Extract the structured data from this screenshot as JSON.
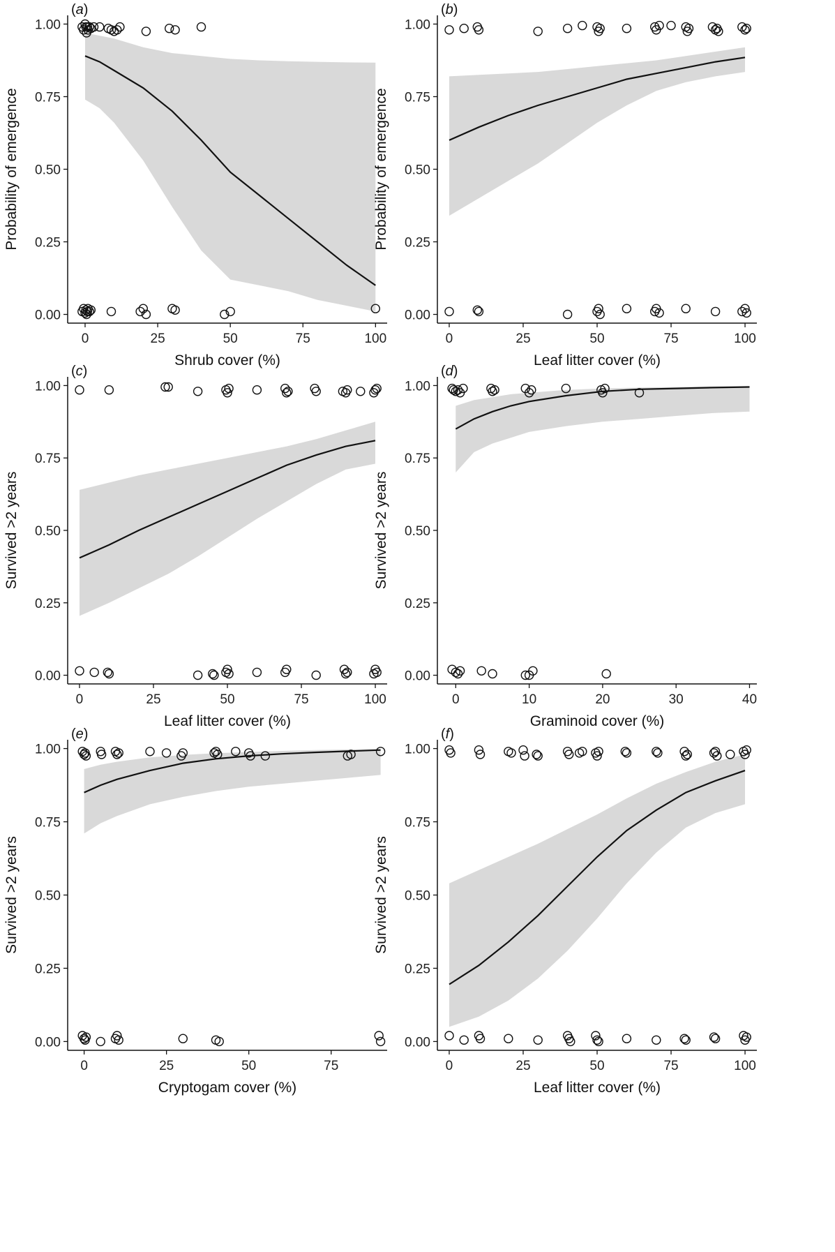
{
  "figure": {
    "background": "#ffffff",
    "ci_color": "#d9d9d9",
    "line_color": "#111111",
    "point_stroke": "#111111"
  },
  "chart_data": [
    {
      "type": "line",
      "panel": "(a)",
      "xlabel": "Shrub cover (%)",
      "ylabel": "Probability of emergence",
      "xlim": [
        -6,
        104
      ],
      "ylim": [
        -0.03,
        1.03
      ],
      "xticks": [
        0,
        25,
        50,
        75,
        100
      ],
      "yticks": [
        0.0,
        0.25,
        0.5,
        0.75,
        1.0
      ],
      "ytick_labels": [
        "0.00",
        "0.25",
        "0.50",
        "0.75",
        "1.00"
      ],
      "fit": {
        "x": [
          0,
          5,
          10,
          20,
          30,
          40,
          50,
          60,
          70,
          80,
          90,
          100
        ],
        "y": [
          0.89,
          0.87,
          0.84,
          0.78,
          0.7,
          0.6,
          0.49,
          0.41,
          0.33,
          0.25,
          0.17,
          0.1
        ]
      },
      "ci_lower": {
        "x": [
          0,
          5,
          10,
          20,
          30,
          40,
          50,
          60,
          70,
          80,
          90,
          100
        ],
        "y": [
          0.74,
          0.71,
          0.66,
          0.53,
          0.37,
          0.22,
          0.12,
          0.1,
          0.08,
          0.05,
          0.03,
          0.01
        ]
      },
      "ci_upper": {
        "x": [
          0,
          5,
          10,
          20,
          30,
          40,
          50,
          60,
          70,
          80,
          90,
          100
        ],
        "y": [
          0.97,
          0.96,
          0.95,
          0.92,
          0.9,
          0.89,
          0.88,
          0.875,
          0.872,
          0.87,
          0.868,
          0.867
        ]
      },
      "points": {
        "x": [
          -1,
          -0.5,
          0,
          0.3,
          0.5,
          0.8,
          1,
          1.5,
          2,
          3,
          5,
          8,
          9,
          10,
          11,
          12,
          21,
          29,
          31,
          40,
          -1,
          -0.5,
          0,
          0.3,
          0.5,
          0.8,
          1,
          1.5,
          2,
          9,
          19,
          20,
          21,
          30,
          31,
          48,
          50,
          100
        ],
        "y": [
          0.99,
          0.98,
          1.0,
          0.99,
          0.97,
          0.99,
          0.98,
          0.99,
          0.985,
          0.99,
          0.99,
          0.985,
          0.98,
          0.975,
          0.98,
          0.99,
          0.975,
          0.985,
          0.98,
          0.99,
          0.01,
          0.02,
          0.005,
          0.015,
          0.0,
          0.01,
          0.02,
          0.01,
          0.015,
          0.01,
          0.01,
          0.02,
          0.0,
          0.02,
          0.015,
          0.0,
          0.01,
          0.02
        ]
      }
    },
    {
      "type": "line",
      "panel": "(b)",
      "xlabel": "Leaf litter cover (%)",
      "ylabel": "Probability of emergence",
      "xlim": [
        -4,
        104
      ],
      "ylim": [
        -0.03,
        1.03
      ],
      "xticks": [
        0,
        25,
        50,
        75,
        100
      ],
      "yticks": [
        0.0,
        0.25,
        0.5,
        0.75,
        1.0
      ],
      "ytick_labels": [
        "0.00",
        "0.25",
        "0.50",
        "0.75",
        "1.00"
      ],
      "fit": {
        "x": [
          0,
          10,
          20,
          30,
          40,
          50,
          60,
          70,
          80,
          90,
          100
        ],
        "y": [
          0.6,
          0.645,
          0.685,
          0.72,
          0.75,
          0.78,
          0.81,
          0.83,
          0.85,
          0.87,
          0.885
        ]
      },
      "ci_lower": {
        "x": [
          0,
          10,
          20,
          30,
          40,
          50,
          60,
          70,
          80,
          90,
          100
        ],
        "y": [
          0.34,
          0.4,
          0.46,
          0.52,
          0.59,
          0.66,
          0.72,
          0.77,
          0.8,
          0.82,
          0.835
        ]
      },
      "ci_upper": {
        "x": [
          0,
          10,
          20,
          30,
          40,
          50,
          60,
          70,
          80,
          90,
          100
        ],
        "y": [
          0.82,
          0.825,
          0.83,
          0.835,
          0.845,
          0.855,
          0.865,
          0.875,
          0.89,
          0.905,
          0.92
        ]
      },
      "points": {
        "x": [
          0,
          5,
          9.5,
          10,
          30,
          40,
          45,
          50,
          50.5,
          51,
          60,
          69.5,
          70,
          71,
          75,
          80,
          80.5,
          81,
          89,
          90,
          90.5,
          91,
          99,
          100,
          100.5,
          0,
          9.5,
          10,
          40,
          50,
          50.5,
          51,
          60,
          69.5,
          70,
          71,
          80,
          90,
          99,
          100,
          100.5
        ],
        "y": [
          0.98,
          0.985,
          0.99,
          0.98,
          0.975,
          0.985,
          0.995,
          0.99,
          0.975,
          0.985,
          0.985,
          0.99,
          0.98,
          0.995,
          0.995,
          0.99,
          0.975,
          0.985,
          0.99,
          0.98,
          0.985,
          0.975,
          0.99,
          0.98,
          0.985,
          0.01,
          0.015,
          0.01,
          0.0,
          0.01,
          0.02,
          0.0,
          0.02,
          0.01,
          0.02,
          0.005,
          0.02,
          0.01,
          0.01,
          0.02,
          0.005
        ]
      }
    },
    {
      "type": "line",
      "panel": "(c)",
      "xlabel": "Leaf litter cover (%)",
      "ylabel": "Survived >2 years",
      "xlim": [
        -4,
        104
      ],
      "ylim": [
        -0.03,
        1.03
      ],
      "xticks": [
        0,
        25,
        50,
        75,
        100
      ],
      "yticks": [
        0.0,
        0.25,
        0.5,
        0.75,
        1.0
      ],
      "ytick_labels": [
        "0.00",
        "0.25",
        "0.50",
        "0.75",
        "1.00"
      ],
      "fit": {
        "x": [
          0,
          10,
          20,
          30,
          40,
          50,
          60,
          70,
          80,
          90,
          100
        ],
        "y": [
          0.405,
          0.45,
          0.5,
          0.545,
          0.59,
          0.635,
          0.68,
          0.725,
          0.76,
          0.79,
          0.81
        ]
      },
      "ci_lower": {
        "x": [
          0,
          10,
          20,
          30,
          40,
          50,
          60,
          70,
          80,
          90,
          100
        ],
        "y": [
          0.205,
          0.25,
          0.3,
          0.35,
          0.41,
          0.475,
          0.54,
          0.6,
          0.66,
          0.71,
          0.73
        ]
      },
      "ci_upper": {
        "x": [
          0,
          10,
          20,
          30,
          40,
          50,
          60,
          70,
          80,
          90,
          100
        ],
        "y": [
          0.64,
          0.665,
          0.69,
          0.71,
          0.73,
          0.75,
          0.77,
          0.79,
          0.815,
          0.845,
          0.875
        ]
      },
      "points": {
        "x": [
          0,
          10,
          29,
          30,
          40,
          49.5,
          50,
          50.5,
          60,
          69.5,
          70,
          70.5,
          79.5,
          80,
          89,
          90,
          90.5,
          95,
          99.5,
          100,
          100.5,
          0,
          5,
          9.5,
          10,
          40,
          45,
          45.5,
          49.5,
          50,
          50.5,
          60,
          69.5,
          70,
          80,
          89.5,
          90,
          90.5,
          99.5,
          100,
          100.5
        ],
        "y": [
          0.985,
          0.985,
          0.995,
          0.995,
          0.98,
          0.985,
          0.975,
          0.99,
          0.985,
          0.99,
          0.975,
          0.98,
          0.99,
          0.98,
          0.98,
          0.975,
          0.985,
          0.98,
          0.975,
          0.985,
          0.99,
          0.015,
          0.01,
          0.01,
          0.005,
          0.0,
          0.005,
          0.0,
          0.01,
          0.02,
          0.005,
          0.01,
          0.01,
          0.02,
          0.0,
          0.02,
          0.005,
          0.01,
          0.005,
          0.02,
          0.01
        ]
      }
    },
    {
      "type": "line",
      "panel": "(d)",
      "xlabel": "Graminoid cover (%)",
      "ylabel": "Survived >2 years",
      "xlim": [
        -2.5,
        41
      ],
      "ylim": [
        -0.03,
        1.03
      ],
      "xticks": [
        0,
        10,
        20,
        30,
        40
      ],
      "yticks": [
        0.0,
        0.25,
        0.5,
        0.75,
        1.0
      ],
      "ytick_labels": [
        "0.00",
        "0.25",
        "0.50",
        "0.75",
        "1.00"
      ],
      "fit": {
        "x": [
          0,
          2.5,
          5,
          7.5,
          10,
          15,
          20,
          25,
          30,
          35,
          40
        ],
        "y": [
          0.85,
          0.885,
          0.91,
          0.93,
          0.945,
          0.965,
          0.98,
          0.987,
          0.99,
          0.993,
          0.995
        ]
      },
      "ci_lower": {
        "x": [
          0,
          2.5,
          5,
          7.5,
          10,
          15,
          20,
          25,
          30,
          35,
          40
        ],
        "y": [
          0.7,
          0.77,
          0.8,
          0.82,
          0.84,
          0.86,
          0.875,
          0.885,
          0.895,
          0.905,
          0.91
        ]
      },
      "ci_upper": {
        "x": [
          0,
          2.5,
          5,
          7.5,
          10,
          15,
          20,
          25,
          30,
          35,
          40
        ],
        "y": [
          0.93,
          0.95,
          0.96,
          0.97,
          0.975,
          0.985,
          0.99,
          0.993,
          0.995,
          0.997,
          0.998
        ]
      },
      "points": {
        "x": [
          -0.5,
          0,
          0.3,
          0.6,
          1,
          -0.3,
          4.8,
          5,
          5.3,
          9.5,
          10,
          10.3,
          15,
          19.8,
          20,
          20.3,
          25,
          -0.5,
          0,
          0.3,
          0.6,
          3.5,
          5,
          9.5,
          10,
          10.5,
          20.5
        ],
        "y": [
          0.99,
          0.98,
          0.985,
          0.975,
          0.99,
          0.985,
          0.99,
          0.98,
          0.985,
          0.99,
          0.975,
          0.985,
          0.99,
          0.985,
          0.975,
          0.99,
          0.975,
          0.02,
          0.01,
          0.005,
          0.015,
          0.015,
          0.005,
          0.0,
          0.0,
          0.015,
          0.005
        ]
      }
    },
    {
      "type": "line",
      "panel": "(e)",
      "xlabel": "Cryptogam cover (%)",
      "ylabel": "Survived >2 years",
      "xlim": [
        -5,
        92
      ],
      "ylim": [
        -0.03,
        1.03
      ],
      "xticks": [
        0,
        25,
        50,
        75
      ],
      "yticks": [
        0.0,
        0.25,
        0.5,
        0.75,
        1.0
      ],
      "ytick_labels": [
        "0.00",
        "0.25",
        "0.50",
        "0.75",
        "1.00"
      ],
      "fit": {
        "x": [
          0,
          5,
          10,
          20,
          30,
          40,
          50,
          60,
          70,
          80,
          90
        ],
        "y": [
          0.85,
          0.875,
          0.895,
          0.925,
          0.95,
          0.965,
          0.975,
          0.982,
          0.987,
          0.991,
          0.995
        ]
      },
      "ci_lower": {
        "x": [
          0,
          5,
          10,
          20,
          30,
          40,
          50,
          60,
          70,
          80,
          90
        ],
        "y": [
          0.71,
          0.745,
          0.77,
          0.81,
          0.835,
          0.855,
          0.87,
          0.88,
          0.89,
          0.9,
          0.91
        ]
      },
      "ci_upper": {
        "x": [
          0,
          5,
          10,
          20,
          30,
          40,
          50,
          60,
          70,
          80,
          90
        ],
        "y": [
          0.93,
          0.945,
          0.955,
          0.97,
          0.978,
          0.984,
          0.988,
          0.992,
          0.995,
          0.997,
          0.998
        ]
      },
      "points": {
        "x": [
          -0.5,
          0,
          0.3,
          0.6,
          5,
          5.3,
          9.5,
          10,
          10.5,
          20,
          25,
          30,
          29.5,
          40,
          40.5,
          39.5,
          46,
          50,
          50.5,
          55,
          80,
          81,
          90,
          -0.5,
          0,
          0.3,
          0.6,
          5,
          9.5,
          10,
          10.5,
          30,
          40,
          41,
          90,
          89.5
        ],
        "y": [
          0.99,
          0.98,
          0.985,
          0.975,
          0.99,
          0.98,
          0.99,
          0.98,
          0.985,
          0.99,
          0.985,
          0.985,
          0.975,
          0.99,
          0.98,
          0.985,
          0.99,
          0.985,
          0.975,
          0.975,
          0.975,
          0.98,
          0.99,
          0.02,
          0.01,
          0.005,
          0.015,
          0.0,
          0.01,
          0.02,
          0.005,
          0.01,
          0.005,
          0.0,
          0.0,
          0.02
        ]
      }
    },
    {
      "type": "line",
      "panel": "(f)",
      "xlabel": "Leaf litter cover (%)",
      "ylabel": "Survived >2 years",
      "xlim": [
        -4,
        104
      ],
      "ylim": [
        -0.03,
        1.03
      ],
      "xticks": [
        0,
        25,
        50,
        75,
        100
      ],
      "yticks": [
        0.0,
        0.25,
        0.5,
        0.75,
        1.0
      ],
      "ytick_labels": [
        "0.00",
        "0.25",
        "0.50",
        "0.75",
        "1.00"
      ],
      "fit": {
        "x": [
          0,
          10,
          20,
          30,
          40,
          50,
          60,
          70,
          80,
          90,
          100
        ],
        "y": [
          0.195,
          0.26,
          0.34,
          0.43,
          0.53,
          0.63,
          0.72,
          0.79,
          0.85,
          0.89,
          0.925
        ]
      },
      "ci_lower": {
        "x": [
          0,
          10,
          20,
          30,
          40,
          50,
          60,
          70,
          80,
          90,
          100
        ],
        "y": [
          0.05,
          0.085,
          0.14,
          0.215,
          0.31,
          0.42,
          0.54,
          0.645,
          0.73,
          0.78,
          0.81
        ]
      },
      "ci_upper": {
        "x": [
          0,
          10,
          20,
          30,
          40,
          50,
          60,
          70,
          80,
          90,
          100
        ],
        "y": [
          0.54,
          0.585,
          0.63,
          0.675,
          0.725,
          0.775,
          0.83,
          0.88,
          0.92,
          0.955,
          0.98
        ]
      },
      "points": {
        "x": [
          0,
          0.5,
          10,
          10.5,
          20,
          21,
          25,
          25.5,
          29.5,
          30,
          40,
          40.5,
          44,
          45,
          49.5,
          50,
          50.5,
          59.5,
          60,
          70,
          70.5,
          79.5,
          80,
          80.5,
          89.5,
          90,
          90.5,
          95,
          99.5,
          100,
          100.5,
          0,
          5,
          10,
          10.5,
          20,
          30,
          40,
          40.5,
          41,
          49.5,
          50,
          50.5,
          60,
          70,
          79.5,
          80,
          89.5,
          90,
          99.5,
          100,
          100.5
        ],
        "y": [
          0.995,
          0.985,
          0.995,
          0.98,
          0.99,
          0.985,
          0.995,
          0.975,
          0.98,
          0.975,
          0.99,
          0.98,
          0.985,
          0.99,
          0.985,
          0.975,
          0.99,
          0.99,
          0.985,
          0.99,
          0.985,
          0.99,
          0.975,
          0.98,
          0.985,
          0.99,
          0.975,
          0.98,
          0.99,
          0.98,
          0.995,
          0.02,
          0.005,
          0.02,
          0.01,
          0.01,
          0.005,
          0.02,
          0.01,
          0.0,
          0.02,
          0.005,
          0.0,
          0.01,
          0.005,
          0.01,
          0.005,
          0.015,
          0.01,
          0.02,
          0.005,
          0.015
        ]
      }
    }
  ]
}
